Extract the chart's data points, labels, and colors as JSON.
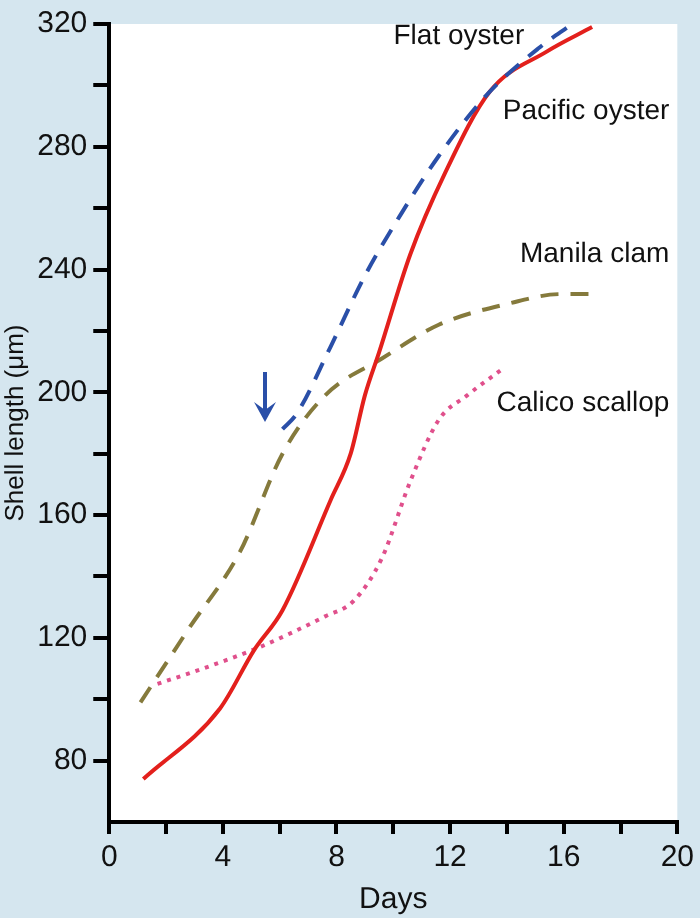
{
  "chart_data": {
    "type": "line",
    "xlabel": "Days",
    "ylabel": "Shell length (μm)",
    "xlim": [
      0,
      20
    ],
    "xticks": [
      0,
      {
        "value": 2,
        "label": null
      },
      4,
      {
        "value": 6,
        "label": null
      },
      8,
      {
        "value": 10,
        "label": null
      },
      12,
      {
        "value": 14,
        "label": null
      },
      16,
      {
        "value": 18,
        "label": null
      },
      20
    ],
    "ylim": [
      60,
      320
    ],
    "yticks": [
      80,
      {
        "value": 100,
        "label": null
      },
      120,
      {
        "value": 140,
        "label": null
      },
      160,
      {
        "value": 180,
        "label": null
      },
      200,
      {
        "value": 220,
        "label": null
      },
      240,
      {
        "value": 260,
        "label": null
      },
      280,
      {
        "value": 300,
        "label": null
      },
      320
    ],
    "grid": false,
    "legend": false,
    "marker": "none",
    "series": [
      {
        "name": "Flat oyster",
        "color": "#2a4fa8",
        "line_style": "dashed",
        "x": [
          6.1,
          6.6,
          7.8,
          9.0,
          10.2,
          11.6,
          13.3,
          15.1,
          16.3
        ],
        "values": [
          188,
          193,
          215,
          238,
          257,
          277,
          297,
          312,
          320
        ]
      },
      {
        "name": "Pacific oyster",
        "color": "#e3201c",
        "line_style": "solid",
        "x": [
          1.2,
          3.9,
          5.1,
          6.1,
          7.8,
          8.5,
          9.0,
          9.5,
          10.6,
          11.8,
          13.4,
          15.4,
          17.0
        ],
        "values": [
          74,
          97,
          116,
          129,
          165,
          180,
          199,
          213,
          245,
          271,
          298,
          311,
          319
        ]
      },
      {
        "name": "Manila clam",
        "color": "#857a3c",
        "line_style": "dashed",
        "x": [
          1.1,
          2.8,
          4.6,
          6.1,
          7.6,
          9.6,
          11.6,
          14.1,
          15.9,
          17.1
        ],
        "values": [
          99,
          123,
          148,
          180,
          199,
          211,
          222,
          229,
          232,
          232
        ]
      },
      {
        "name": "Calico scallop",
        "color": "#e0508c",
        "line_style": "dotted",
        "x": [
          1.7,
          3.3,
          5.3,
          7.6,
          8.6,
          9.6,
          10.6,
          11.6,
          12.6,
          13.9
        ],
        "values": [
          105,
          110,
          117,
          127,
          132,
          146,
          171,
          191,
          199,
          208
        ]
      }
    ]
  }
}
